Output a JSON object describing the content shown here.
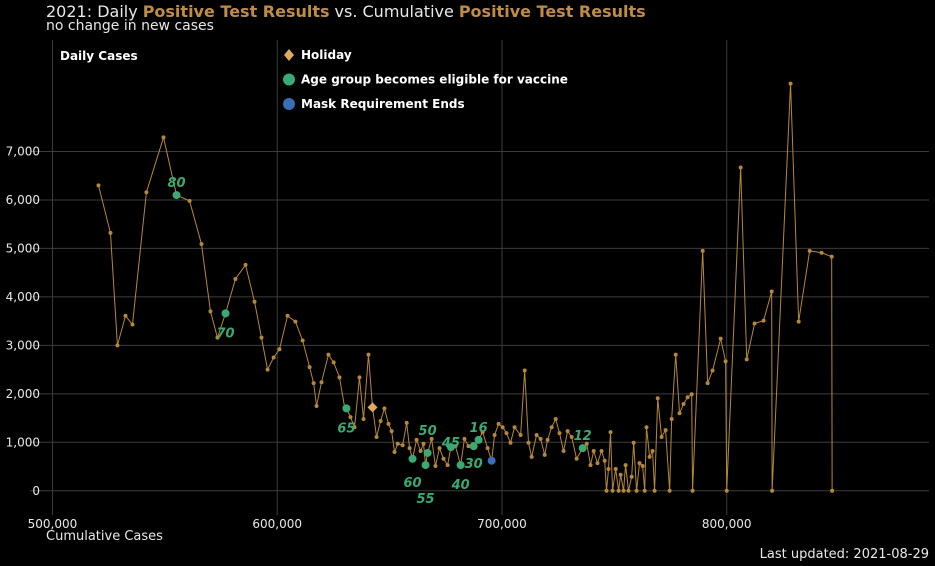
{
  "chart_data": {
    "type": "line",
    "title": [
      "2021: Daily",
      "Positive Test Results",
      "vs. Cumulative",
      "Positive Test Results"
    ],
    "subtitle": "no change in new cases",
    "x_label": "Cumulative Cases",
    "caption": "Last updated: 2021-08-29",
    "title_highlight_color": "#c08c45",
    "xlim": [
      490000,
      890000
    ],
    "ylim": [
      -500,
      9300
    ],
    "xticks": [
      {
        "value": 500000,
        "label": "500,000"
      },
      {
        "value": 600000,
        "label": "600,000"
      },
      {
        "value": 700000,
        "label": "700,000"
      },
      {
        "value": 800000,
        "label": "800,000"
      }
    ],
    "yticks": [
      0,
      {
        "value": 1000,
        "label": "1,000"
      },
      {
        "value": 2000,
        "label": "2,000"
      },
      {
        "value": 3000,
        "label": "3,000"
      },
      {
        "value": 4000,
        "label": "4,000"
      },
      {
        "value": 5000,
        "label": "5,000"
      },
      {
        "value": 6000,
        "label": "6,000"
      },
      {
        "value": 7000,
        "label": "7,000"
      }
    ],
    "grid": true,
    "series": [
      {
        "name": "Daily Cases",
        "marker": "line",
        "color": "#b5873a",
        "x": [
          520470,
          525800,
          528900,
          532500,
          535600,
          541800,
          549400,
          555200,
          561000,
          566300,
          570300,
          573400,
          577000,
          581400,
          585900,
          589900,
          593000,
          595700,
          598400,
          601000,
          604600,
          608100,
          611300,
          614400,
          616200,
          617500,
          619700,
          622800,
          625100,
          627700,
          630000,
          630800,
          632600,
          634400,
          636600,
          638400,
          640600,
          642400,
          644200,
          646000,
          647700,
          649500,
          650900,
          652200,
          653600,
          655800,
          657600,
          658900,
          660200,
          662000,
          663800,
          665100,
          666000,
          666900,
          668700,
          670400,
          672200,
          674000,
          675800,
          677300,
          679300,
          681600,
          683300,
          685100,
          687400,
          689600,
          691400,
          693600,
          695400,
          696700,
          698500,
          700300,
          702000,
          703800,
          705600,
          708300,
          710100,
          711800,
          713200,
          715400,
          717200,
          719000,
          720300,
          722100,
          723900,
          725600,
          727400,
          729200,
          731000,
          733200,
          735900,
          737700,
          739400,
          740800,
          742500,
          744300,
          745700,
          746500,
          747400,
          748300,
          749200,
          750600,
          751900,
          752800,
          754100,
          755000,
          756300,
          757700,
          758600,
          759900,
          761200,
          762600,
          763500,
          764300,
          765700,
          767000,
          767900,
          769300,
          771000,
          772800,
          774600,
          775500,
          777300,
          779000,
          780800,
          782600,
          784400,
          784800,
          789300,
          791500,
          793700,
          797300,
          799500,
          800000,
          806200,
          808900,
          812400,
          816400,
          820000,
          820200,
          828400,
          832000,
          836900,
          842200,
          846700,
          846900
        ],
        "values": [
          6300,
          5320,
          3000,
          3610,
          3430,
          6160,
          7290,
          6100,
          5980,
          5090,
          3700,
          3160,
          3660,
          4370,
          4660,
          3900,
          3160,
          2500,
          2750,
          2920,
          3610,
          3490,
          3100,
          2550,
          2220,
          1750,
          2240,
          2810,
          2650,
          2340,
          1720,
          1700,
          1520,
          1310,
          2340,
          1480,
          2810,
          1720,
          1110,
          1440,
          1700,
          1380,
          1230,
          800,
          970,
          940,
          1400,
          880,
          660,
          1050,
          820,
          970,
          530,
          780,
          1070,
          510,
          880,
          660,
          530,
          900,
          920,
          530,
          1070,
          920,
          920,
          1050,
          1210,
          880,
          620,
          1150,
          1380,
          1310,
          1190,
          990,
          1310,
          1150,
          2480,
          990,
          700,
          1150,
          1070,
          740,
          1050,
          1310,
          1480,
          1190,
          820,
          1230,
          1110,
          660,
          880,
          970,
          530,
          820,
          570,
          820,
          620,
          0,
          450,
          1210,
          0,
          450,
          0,
          330,
          0,
          530,
          0,
          290,
          990,
          0,
          570,
          510,
          0,
          1310,
          700,
          820,
          0,
          1910,
          1110,
          1250,
          0,
          1480,
          2810,
          1600,
          1790,
          1930,
          1990,
          0,
          4950,
          2220,
          2480,
          3140,
          2670,
          0,
          6670,
          2710,
          3450,
          3510,
          4110,
          0,
          8400,
          3490,
          4950,
          4910,
          4830,
          0
        ]
      },
      {
        "name": "Holiday",
        "marker": "diamond",
        "color": "#e0aa62",
        "x": [
          642400
        ],
        "values": [
          1720
        ]
      },
      {
        "name": "Age group becomes eligible for vaccine",
        "marker": "circle",
        "color": "#3aaa72",
        "x": [
          555200,
          577000,
          630800,
          660200,
          666000,
          666900,
          677300,
          681600,
          687400,
          689600,
          735900
        ],
        "values": [
          6100,
          3660,
          1700,
          660,
          530,
          780,
          900,
          530,
          920,
          1050,
          880
        ],
        "point_labels": [
          "80",
          "70",
          "65",
          "60",
          "55",
          "50",
          "45",
          "40",
          "30",
          "16",
          "12"
        ]
      },
      {
        "name": "Mask Requirement Ends",
        "marker": "circle",
        "color": "#3a6fb5",
        "x": [
          695400
        ],
        "values": [
          620
        ]
      }
    ]
  }
}
